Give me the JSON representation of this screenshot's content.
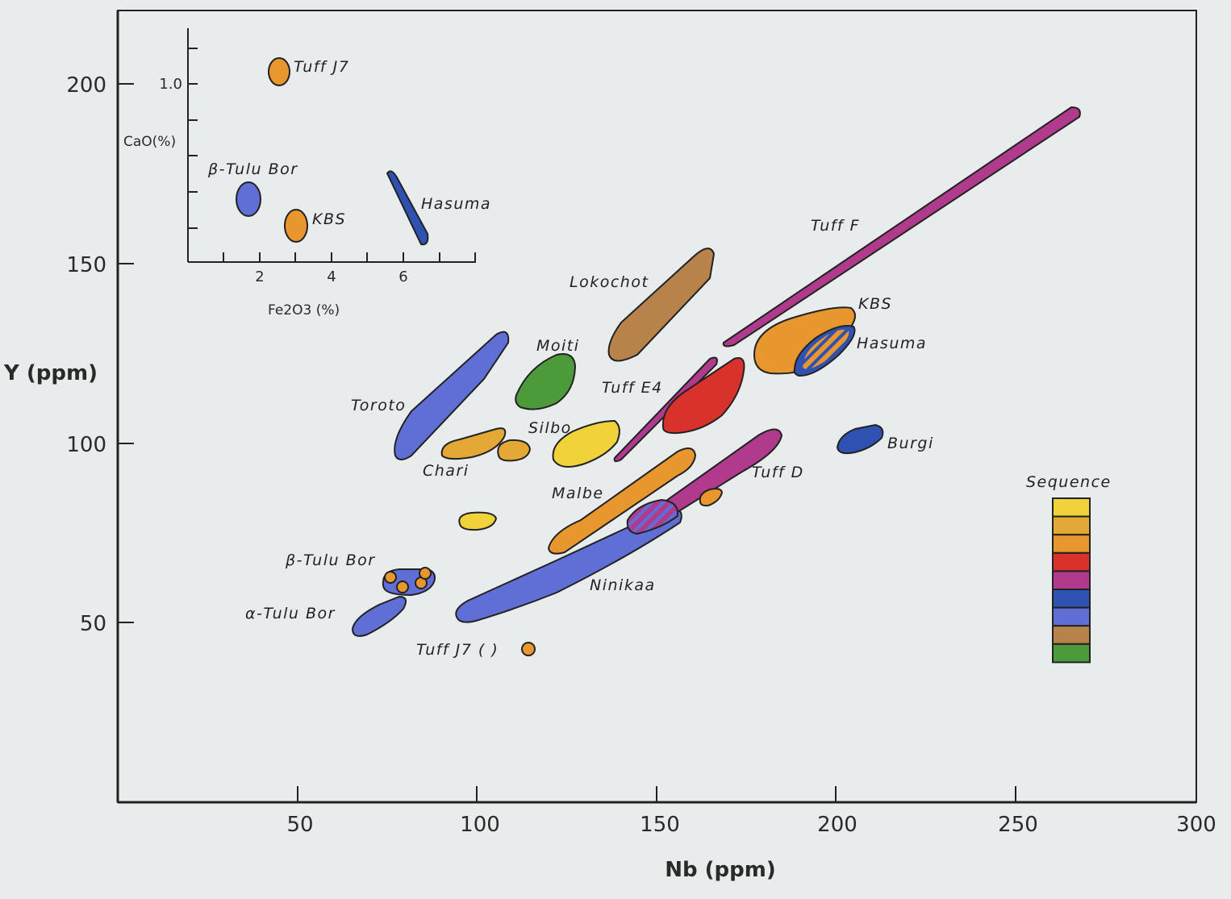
{
  "chart_data": {
    "type": "scatter",
    "xlabel": "Nb (ppm)",
    "ylabel": "Y (ppm)",
    "xlim": [
      0,
      300
    ],
    "ylim": [
      0,
      220
    ],
    "xticks": [
      "50",
      "100",
      "150",
      "200",
      "250",
      "300"
    ],
    "yticks": [
      "50",
      "100",
      "150",
      "200"
    ],
    "fields": [
      {
        "label": "Tuff F",
        "color": "#b03a8c",
        "x_range": [
          170,
          267
        ],
        "y_range": [
          128,
          193
        ]
      },
      {
        "label": "Lokochot",
        "color": "#b8834a",
        "x_range": [
          139,
          163
        ],
        "y_range": [
          123,
          155
        ]
      },
      {
        "label": "KBS",
        "color": "#e8962e",
        "x_range": [
          180,
          205
        ],
        "y_range": [
          120,
          137
        ]
      },
      {
        "label": "Hasuma",
        "color": "#2f52b2",
        "x_range": [
          190,
          206
        ],
        "y_range": [
          118,
          132
        ]
      },
      {
        "label": "Moiti",
        "color": "#4c9a3a",
        "x_range": [
          120,
          126
        ],
        "y_range": [
          110,
          124
        ]
      },
      {
        "label": "Toroto",
        "color": "#5f6fd6",
        "x_range": [
          90,
          108
        ],
        "y_range": [
          96,
          130
        ]
      },
      {
        "label": "Tuff E4",
        "color": "#b03a8c",
        "x_range": [
          139,
          166
        ],
        "y_range": [
          95,
          124
        ]
      },
      {
        "label": "Tuff E4",
        "color": "#d9322d",
        "x_range": [
          152,
          173
        ],
        "y_range": [
          104,
          122
        ]
      },
      {
        "label": "Silbo",
        "color": "#f0d23a",
        "x_range": [
          126,
          142
        ],
        "y_range": [
          95,
          106
        ]
      },
      {
        "label": "Chari",
        "color": "#e4a934",
        "x_range": [
          87,
          105
        ],
        "y_range": [
          98,
          104
        ]
      },
      {
        "label": "Chari",
        "color": "#e4a934",
        "x_range": [
          105,
          114
        ],
        "y_range": [
          97,
          102
        ]
      },
      {
        "label": "Burgi",
        "color": "#2f52b2",
        "x_range": [
          201,
          212
        ],
        "y_range": [
          97,
          105
        ]
      },
      {
        "label": "Tuff D",
        "color": "#b03a8c",
        "x_range": [
          146,
          184
        ],
        "y_range": [
          75,
          104
        ]
      },
      {
        "label": "Malbe",
        "color": "#e8962e",
        "x_range": [
          120,
          160
        ],
        "y_range": [
          70,
          98
        ]
      },
      {
        "label": "Ninikaa",
        "color": "#5f6fd6",
        "x_range": [
          94,
          154
        ],
        "y_range": [
          52,
          82
        ]
      },
      {
        "label": "",
        "color": "#e8962e",
        "x_range": [
          162,
          167
        ],
        "y_range": [
          83,
          86
        ]
      },
      {
        "label": "",
        "color": "#f0d23a",
        "x_range": [
          97,
          107
        ],
        "y_range": [
          77,
          81
        ]
      },
      {
        "label": "β-Tulu Bor",
        "color": "#5f6fd6",
        "x_range": [
          75,
          86
        ],
        "y_range": [
          58,
          65
        ]
      },
      {
        "label": "α-Tulu Bor",
        "color": "#5f6fd6",
        "x_range": [
          65,
          80
        ],
        "y_range": [
          48,
          58
        ]
      },
      {
        "label": "Tuff J7",
        "color": "#e8962e",
        "x_range": [
          114,
          115
        ],
        "y_range": [
          44,
          45
        ]
      }
    ],
    "labels": [
      "Tuff F",
      "Lokochot",
      "KBS",
      "Hasuma",
      "Moiti",
      "Toroto",
      "Tuff E4",
      "Silbo",
      "Chari",
      "Burgi",
      "Tuff D",
      "Malbe",
      "Ninikaa",
      "β-Tulu Bor",
      "α-Tulu Bor",
      "Tuff J7 ( )"
    ],
    "legend": {
      "title": "Sequence",
      "placement": "right",
      "colors": [
        "#f0d23a",
        "#e4a934",
        "#e8962e",
        "#d9322d",
        "#b03a8c",
        "#2f52b2",
        "#5f6fd6",
        "#b8834a",
        "#4c9a3a"
      ]
    },
    "inset": {
      "xlabel": "Fe2O3 (%)",
      "ylabel": "CaO(%)",
      "xticks": [
        "2",
        "4",
        "6"
      ],
      "yticks": [
        "1.0"
      ],
      "points": [
        {
          "label": "Tuff J7",
          "color": "#e8962e",
          "x": 2.6,
          "y": 1.03
        },
        {
          "label": "β-Tulu Bor",
          "color": "#5f6fd6",
          "x": 1.7,
          "y": 0.64
        },
        {
          "label": "KBS",
          "color": "#e8962e",
          "x": 3.0,
          "y": 0.55
        },
        {
          "label": "Hasuma",
          "color": "#2f52b2",
          "x": 6.0,
          "y": 0.62
        }
      ]
    }
  }
}
